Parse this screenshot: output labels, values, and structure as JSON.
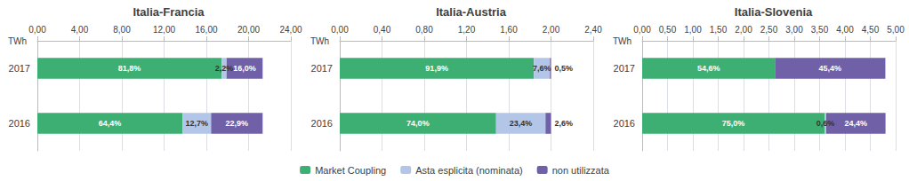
{
  "chart_data": [
    {
      "type": "bar",
      "orientation": "horizontal",
      "stacked": true,
      "title": "Italia-Francia",
      "xlabel": "TWh",
      "categories": [
        "2017",
        "2016"
      ],
      "series": [
        {
          "name": "Market Coupling",
          "color": "#3daf72",
          "values": [
            17.45,
            13.74
          ],
          "share_labels": [
            "81,8%",
            "64,4%"
          ]
        },
        {
          "name": "Asta esplicita (nominata)",
          "color": "#b3c6e7",
          "values": [
            0.47,
            2.71
          ],
          "share_labels": [
            "2,2%",
            "12,7%"
          ]
        },
        {
          "name": "non utilizzata",
          "color": "#7060a8",
          "values": [
            3.41,
            4.88
          ],
          "share_labels": [
            "16,0%",
            "22,9%"
          ]
        }
      ],
      "xlim": [
        0,
        24
      ],
      "xticks": [
        {
          "value": 0,
          "label": "0,00"
        },
        {
          "value": 4,
          "label": "4,00"
        },
        {
          "value": 8,
          "label": "8,00"
        },
        {
          "value": 12,
          "label": "12,00"
        },
        {
          "value": 16,
          "label": "16,00"
        },
        {
          "value": 20,
          "label": "20,00"
        },
        {
          "value": 24,
          "label": "24,00"
        }
      ],
      "grid": true,
      "legend": "bottom"
    },
    {
      "type": "bar",
      "orientation": "horizontal",
      "stacked": true,
      "title": "Italia-Austria",
      "xlabel": "TWh",
      "categories": [
        "2017",
        "2016"
      ],
      "series": [
        {
          "name": "Market Coupling",
          "color": "#3daf72",
          "values": [
            1.838,
            1.48
          ],
          "share_labels": [
            "91,9%",
            "74,0%"
          ]
        },
        {
          "name": "Asta esplicita (nominata)",
          "color": "#b3c6e7",
          "values": [
            0.152,
            0.468
          ],
          "share_labels": [
            "7,6%",
            "23,4%"
          ]
        },
        {
          "name": "non utilizzata",
          "color": "#7060a8",
          "values": [
            0.01,
            0.052
          ],
          "share_labels": [
            "0,5%",
            "2,6%"
          ]
        }
      ],
      "xlim": [
        0,
        2.4
      ],
      "xticks": [
        {
          "value": 0,
          "label": "0,00"
        },
        {
          "value": 0.4,
          "label": "0,40"
        },
        {
          "value": 0.8,
          "label": "0,80"
        },
        {
          "value": 1.2,
          "label": "1,20"
        },
        {
          "value": 1.6,
          "label": "1,60"
        },
        {
          "value": 2.0,
          "label": "2,00"
        },
        {
          "value": 2.4,
          "label": "2,40"
        }
      ],
      "grid": true,
      "legend": "bottom"
    },
    {
      "type": "bar",
      "orientation": "horizontal",
      "stacked": true,
      "title": "Italia-Slovenia",
      "xlabel": "TWh",
      "categories": [
        "2017",
        "2016"
      ],
      "series": [
        {
          "name": "Market Coupling",
          "color": "#3daf72",
          "values": [
            2.619,
            3.6
          ],
          "share_labels": [
            "54,6%",
            "75,0%"
          ]
        },
        {
          "name": "Asta esplicita (nominata)",
          "color": "#b3c6e7",
          "values": [
            0.0,
            0.029
          ],
          "share_labels": [
            null,
            "0,6%"
          ]
        },
        {
          "name": "non utilizzata",
          "color": "#7060a8",
          "values": [
            2.178,
            1.171
          ],
          "share_labels": [
            "45,4%",
            "24,4%"
          ]
        }
      ],
      "xlim": [
        0,
        5.0
      ],
      "xticks": [
        {
          "value": 0,
          "label": "0,00"
        },
        {
          "value": 0.5,
          "label": "0,50"
        },
        {
          "value": 1.0,
          "label": "1,00"
        },
        {
          "value": 1.5,
          "label": "1,50"
        },
        {
          "value": 2.0,
          "label": "2,00"
        },
        {
          "value": 2.5,
          "label": "2,50"
        },
        {
          "value": 3.0,
          "label": "3,00"
        },
        {
          "value": 3.5,
          "label": "3,50"
        },
        {
          "value": 4.0,
          "label": "4,00"
        },
        {
          "value": 4.5,
          "label": "4,50"
        },
        {
          "value": 5.0,
          "label": "5,00"
        }
      ],
      "grid": true,
      "legend": "bottom"
    }
  ]
}
